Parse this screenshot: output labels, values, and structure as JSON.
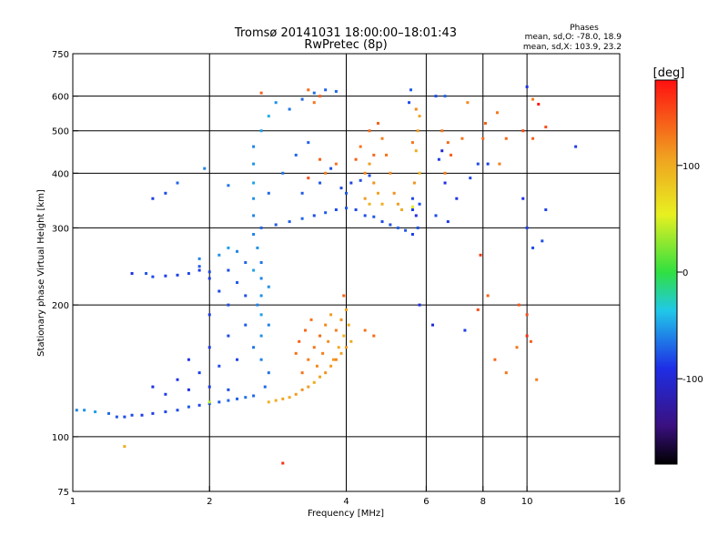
{
  "chart_data": {
    "type": "scatter",
    "title": "Tromsø 20141031 18:00:00–18:01:43",
    "subtitle": "RwPretec (8p)",
    "xlabel": "Frequency [MHz]",
    "ylabel": "Stationary phase Virtual Height [km]",
    "x_scale": "log2",
    "y_scale": "log",
    "xlim": [
      1,
      16
    ],
    "ylim": [
      75,
      750
    ],
    "x_ticks": [
      "1",
      "2",
      "4",
      "6",
      "8",
      "10",
      "16"
    ],
    "y_ticks": [
      "75",
      "100",
      "200",
      "300",
      "400",
      "500",
      "600",
      "750"
    ],
    "grid_x": [
      2,
      4,
      6,
      8,
      10
    ],
    "grid_y": [
      100,
      200,
      300,
      400,
      500,
      600
    ],
    "grid": true,
    "colorbar": {
      "label": "[deg]",
      "range": [
        -180,
        180
      ],
      "ticks": [
        "100",
        "0",
        "-100"
      ]
    },
    "legend": {
      "title": "Phases",
      "line1": "mean, sd,O: -78.0, 18.9",
      "line2": "mean, sd,X: 103.9, 23.2"
    },
    "colors": {
      "phase_o": "#1e3cdc",
      "phase_x": "#e6a020"
    },
    "series": [
      {
        "values": [
          [
            1.02,
            115,
            -60
          ],
          [
            1.06,
            115,
            -55
          ],
          [
            1.12,
            114,
            -50
          ],
          [
            1.2,
            113,
            -70
          ],
          [
            1.25,
            111,
            -75
          ],
          [
            1.3,
            111,
            -80
          ],
          [
            1.35,
            112,
            -80
          ],
          [
            1.42,
            112,
            -85
          ],
          [
            1.5,
            113,
            -85
          ],
          [
            1.6,
            114,
            -80
          ],
          [
            1.7,
            115,
            -80
          ],
          [
            1.8,
            117,
            -75
          ],
          [
            1.9,
            118,
            -80
          ],
          [
            2.0,
            119,
            -78
          ],
          [
            2.1,
            120,
            -75
          ],
          [
            2.2,
            121,
            -70
          ],
          [
            2.3,
            122,
            -72
          ],
          [
            2.4,
            123,
            -65
          ],
          [
            2.5,
            124,
            -70
          ],
          [
            1.6,
            125,
            -85
          ],
          [
            1.8,
            128,
            -90
          ],
          [
            2.0,
            130,
            -85
          ],
          [
            2.2,
            128,
            -80
          ],
          [
            1.5,
            130,
            -90
          ],
          [
            1.7,
            135,
            -88
          ],
          [
            1.9,
            140,
            -85
          ],
          [
            2.1,
            145,
            -80
          ],
          [
            2.3,
            150,
            -82
          ],
          [
            1.8,
            150,
            -88
          ],
          [
            2.0,
            160,
            -85
          ],
          [
            2.2,
            170,
            -80
          ],
          [
            2.4,
            180,
            -75
          ],
          [
            2.0,
            190,
            -85
          ],
          [
            2.2,
            200,
            -80
          ],
          [
            2.4,
            210,
            -78
          ],
          [
            2.1,
            215,
            -82
          ],
          [
            2.3,
            225,
            -75
          ],
          [
            2.0,
            230,
            -85
          ],
          [
            2.2,
            240,
            -80
          ],
          [
            2.4,
            250,
            -70
          ],
          [
            1.9,
            255,
            -60
          ],
          [
            2.1,
            260,
            -55
          ],
          [
            2.2,
            270,
            -50
          ],
          [
            2.3,
            265,
            -60
          ],
          [
            1.9,
            245,
            -75
          ],
          [
            2.6,
            150,
            -60
          ],
          [
            2.6,
            170,
            -55
          ],
          [
            2.6,
            190,
            -50
          ],
          [
            2.6,
            210,
            -55
          ],
          [
            2.6,
            230,
            -60
          ],
          [
            2.6,
            250,
            -65
          ],
          [
            2.55,
            270,
            -55
          ],
          [
            2.5,
            290,
            -60
          ],
          [
            2.7,
            140,
            -65
          ],
          [
            2.7,
            180,
            -60
          ],
          [
            2.7,
            220,
            -55
          ],
          [
            2.5,
            240,
            -50
          ],
          [
            2.55,
            200,
            -60
          ],
          [
            2.65,
            130,
            -70
          ],
          [
            2.5,
            160,
            -65
          ],
          [
            1.45,
            236,
            -75
          ],
          [
            1.5,
            232,
            -80
          ],
          [
            1.6,
            233,
            -85
          ],
          [
            1.7,
            234,
            -85
          ],
          [
            1.8,
            236,
            -80
          ],
          [
            1.35,
            236,
            -90
          ],
          [
            1.9,
            240,
            -85
          ],
          [
            2.0,
            238,
            -80
          ],
          [
            2.6,
            300,
            -70
          ],
          [
            2.8,
            305,
            -75
          ],
          [
            3.0,
            310,
            -72
          ],
          [
            3.2,
            315,
            -70
          ],
          [
            3.4,
            320,
            -78
          ],
          [
            3.6,
            325,
            -75
          ],
          [
            3.8,
            330,
            -80
          ],
          [
            4.0,
            333,
            -75
          ],
          [
            4.2,
            330,
            -80
          ],
          [
            4.4,
            320,
            -78
          ],
          [
            4.6,
            318,
            -75
          ],
          [
            4.8,
            310,
            -80
          ],
          [
            5.0,
            305,
            -78
          ],
          [
            5.2,
            300,
            -72
          ],
          [
            5.4,
            296,
            -76
          ],
          [
            2.5,
            320,
            -60
          ],
          [
            2.5,
            350,
            -55
          ],
          [
            2.5,
            380,
            -50
          ],
          [
            2.5,
            420,
            -55
          ],
          [
            2.5,
            460,
            -60
          ],
          [
            2.6,
            500,
            -50
          ],
          [
            2.7,
            540,
            -45
          ],
          [
            2.8,
            580,
            -55
          ],
          [
            3.0,
            560,
            -65
          ],
          [
            3.2,
            590,
            -70
          ],
          [
            3.4,
            610,
            -68
          ],
          [
            3.6,
            620,
            -72
          ],
          [
            3.8,
            615,
            -70
          ],
          [
            2.7,
            360,
            -70
          ],
          [
            2.9,
            400,
            -65
          ],
          [
            3.1,
            440,
            -70
          ],
          [
            3.3,
            470,
            -72
          ],
          [
            3.5,
            380,
            -75
          ],
          [
            3.7,
            410,
            -78
          ],
          [
            3.9,
            370,
            -80
          ],
          [
            4.1,
            380,
            -82
          ],
          [
            4.3,
            385,
            -78
          ],
          [
            4.5,
            395,
            -80
          ],
          [
            4.0,
            360,
            -76
          ],
          [
            3.2,
            360,
            -74
          ],
          [
            5.6,
            330,
            -85
          ],
          [
            5.7,
            320,
            -90
          ],
          [
            5.8,
            340,
            -80
          ],
          [
            5.6,
            350,
            -82
          ],
          [
            5.75,
            300,
            -78
          ],
          [
            5.6,
            290,
            -85
          ],
          [
            5.5,
            580,
            -80
          ],
          [
            5.55,
            620,
            -75
          ],
          [
            6.3,
            600,
            -78
          ],
          [
            6.6,
            600,
            -70
          ],
          [
            6.4,
            430,
            -85
          ],
          [
            6.6,
            380,
            -90
          ],
          [
            6.3,
            320,
            -80
          ],
          [
            6.7,
            310,
            -85
          ],
          [
            7.0,
            350,
            -88
          ],
          [
            7.5,
            390,
            -82
          ],
          [
            7.8,
            420,
            -80
          ],
          [
            8.2,
            420,
            -85
          ],
          [
            9.8,
            350,
            -90
          ],
          [
            10.0,
            300,
            -85
          ],
          [
            10.3,
            270,
            -80
          ],
          [
            10.8,
            280,
            -78
          ],
          [
            11.0,
            330,
            -82
          ],
          [
            12.8,
            460,
            -85
          ],
          [
            10.0,
            630,
            -90
          ],
          [
            6.5,
            450,
            -100
          ],
          [
            6.2,
            180,
            -95
          ],
          [
            5.8,
            200,
            -90
          ],
          [
            7.3,
            175,
            -85
          ],
          [
            1.95,
            410,
            -60
          ],
          [
            2.2,
            375,
            -65
          ],
          [
            1.7,
            380,
            -70
          ],
          [
            1.6,
            360,
            -80
          ],
          [
            1.5,
            350,
            -85
          ],
          [
            1.3,
            95,
            100
          ],
          [
            2.0,
            120,
            40
          ],
          [
            5.6,
            335,
            60
          ]
        ]
      },
      {
        "values": [
          [
            2.7,
            120,
            95
          ],
          [
            2.8,
            121,
            100
          ],
          [
            2.9,
            122,
            105
          ],
          [
            3.0,
            123,
            100
          ],
          [
            3.1,
            125,
            110
          ],
          [
            3.2,
            128,
            115
          ],
          [
            3.3,
            130,
            110
          ],
          [
            3.4,
            133,
            100
          ],
          [
            3.5,
            137,
            105
          ],
          [
            3.6,
            140,
            115
          ],
          [
            3.7,
            145,
            110
          ],
          [
            3.8,
            150,
            120
          ],
          [
            3.9,
            155,
            105
          ],
          [
            4.0,
            160,
            110
          ],
          [
            4.1,
            165,
            100
          ],
          [
            3.2,
            140,
            130
          ],
          [
            3.3,
            150,
            125
          ],
          [
            3.4,
            160,
            130
          ],
          [
            3.5,
            170,
            135
          ],
          [
            3.6,
            180,
            120
          ],
          [
            3.7,
            190,
            110
          ],
          [
            3.8,
            175,
            125
          ],
          [
            3.9,
            185,
            115
          ],
          [
            4.0,
            195,
            105
          ],
          [
            3.15,
            165,
            140
          ],
          [
            3.25,
            175,
            135
          ],
          [
            3.1,
            155,
            130
          ],
          [
            3.45,
            145,
            120
          ],
          [
            3.55,
            155,
            125
          ],
          [
            3.65,
            165,
            115
          ],
          [
            3.75,
            150,
            110
          ],
          [
            3.85,
            160,
            100
          ],
          [
            3.95,
            170,
            95
          ],
          [
            4.05,
            180,
            100
          ],
          [
            3.35,
            185,
            130
          ],
          [
            3.3,
            620,
            135
          ],
          [
            3.5,
            600,
            140
          ],
          [
            3.4,
            580,
            130
          ],
          [
            3.6,
            400,
            125
          ],
          [
            3.8,
            420,
            130
          ],
          [
            3.5,
            430,
            140
          ],
          [
            3.3,
            390,
            150
          ],
          [
            4.4,
            400,
            120
          ],
          [
            4.5,
            420,
            110
          ],
          [
            4.6,
            380,
            115
          ],
          [
            4.7,
            360,
            105
          ],
          [
            4.8,
            340,
            100
          ],
          [
            4.4,
            350,
            110
          ],
          [
            4.5,
            340,
            95
          ],
          [
            4.3,
            460,
            130
          ],
          [
            4.5,
            500,
            135
          ],
          [
            4.7,
            520,
            140
          ],
          [
            4.8,
            480,
            125
          ],
          [
            4.9,
            440,
            130
          ],
          [
            5.0,
            400,
            120
          ],
          [
            5.1,
            360,
            115
          ],
          [
            5.2,
            340,
            110
          ],
          [
            5.3,
            330,
            100
          ],
          [
            4.6,
            440,
            135
          ],
          [
            4.2,
            430,
            140
          ],
          [
            5.7,
            450,
            100
          ],
          [
            5.75,
            500,
            110
          ],
          [
            5.8,
            540,
            105
          ],
          [
            5.7,
            560,
            120
          ],
          [
            5.8,
            400,
            95
          ],
          [
            5.6,
            470,
            130
          ],
          [
            5.65,
            380,
            115
          ],
          [
            6.5,
            500,
            130
          ],
          [
            6.6,
            400,
            125
          ],
          [
            6.7,
            470,
            135
          ],
          [
            6.8,
            440,
            140
          ],
          [
            7.4,
            580,
            120
          ],
          [
            7.2,
            480,
            130
          ],
          [
            8.0,
            480,
            135
          ],
          [
            8.1,
            520,
            140
          ],
          [
            8.6,
            550,
            130
          ],
          [
            8.2,
            210,
            140
          ],
          [
            8.7,
            420,
            125
          ],
          [
            9.0,
            480,
            135
          ],
          [
            9.8,
            500,
            150
          ],
          [
            10.3,
            480,
            140
          ],
          [
            10.3,
            590,
            125
          ],
          [
            11.0,
            510,
            150
          ],
          [
            7.8,
            195,
            150
          ],
          [
            9.6,
            200,
            145
          ],
          [
            10.0,
            190,
            150
          ],
          [
            7.9,
            260,
            160
          ],
          [
            9.0,
            140,
            130
          ],
          [
            8.5,
            150,
            135
          ],
          [
            10.2,
            165,
            140
          ],
          [
            10.5,
            135,
            125
          ],
          [
            9.5,
            160,
            130
          ],
          [
            4.4,
            175,
            130
          ],
          [
            4.6,
            170,
            135
          ],
          [
            3.95,
            210,
            140
          ],
          [
            2.6,
            610,
            140
          ],
          [
            2.9,
            87,
            165
          ],
          [
            10.6,
            575,
            175
          ],
          [
            10.0,
            170,
            165
          ]
        ]
      }
    ]
  }
}
